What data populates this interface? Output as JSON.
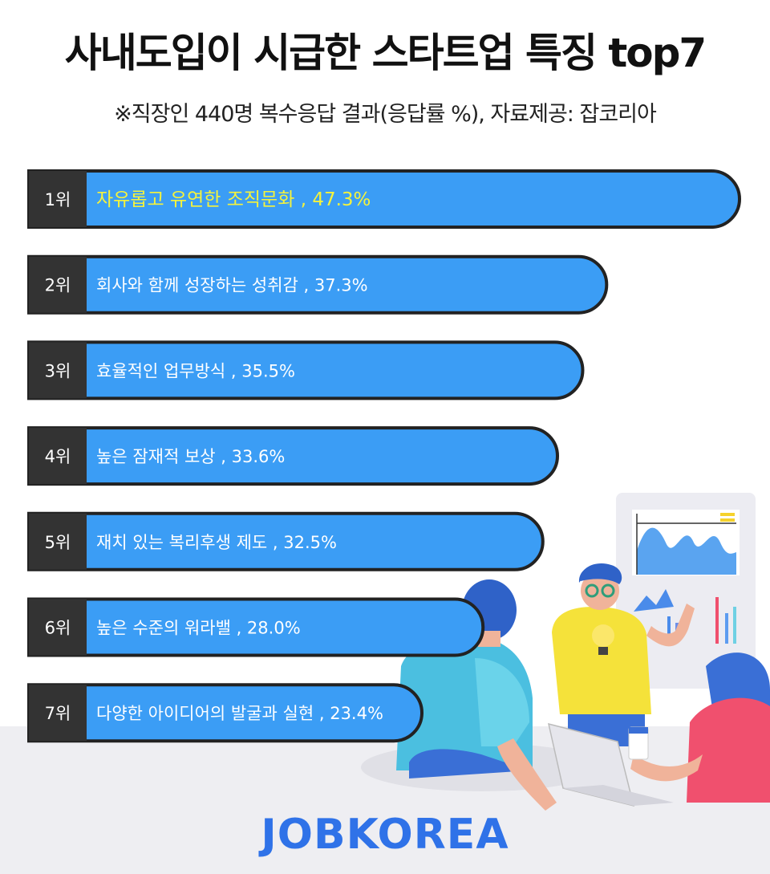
{
  "header": {
    "title": "사내도입이 시급한 스타트업 특징 top7",
    "subtitle": "※직장인 440명 복수응답 결과(응답률 %), 자료제공: 잡코리아"
  },
  "colors": {
    "bar_fill": "#3b9df5",
    "bar_edge": "#222222",
    "rank_box": "#333333",
    "highlight_text": "#f5f33c",
    "logo": "#2f72e8"
  },
  "chart_data": {
    "type": "bar",
    "orientation": "horizontal",
    "categories": [
      "자유롭고 유연한 조직문화",
      "회사와 함께 성장하는 성취감",
      "효율적인 업무방식",
      "높은 잠재적 보상",
      "재치 있는 복리후생 제도",
      "높은 수준의 워라밸",
      "다양한 아이디어의 발굴과 실현"
    ],
    "ranks": [
      "1위",
      "2위",
      "3위",
      "4위",
      "5위",
      "6위",
      "7위"
    ],
    "labels": [
      "자유롭고 유연한 조직문화 , 47.3%",
      "회사와 함께 성장하는 성취감 , 37.3%",
      "효율적인 업무방식 , 35.5%",
      "높은 잠재적 보상 , 33.6%",
      "재치 있는 복리후생 제도 , 32.5%",
      "높은 수준의 워라밸 , 28.0%",
      "다양한 아이디어의 발굴과 실현 , 23.4%"
    ],
    "values": [
      47.3,
      37.3,
      35.5,
      33.6,
      32.5,
      28.0,
      23.4
    ],
    "unit": "%"
  },
  "footer": {
    "logo_text": "JOBKOREA"
  }
}
